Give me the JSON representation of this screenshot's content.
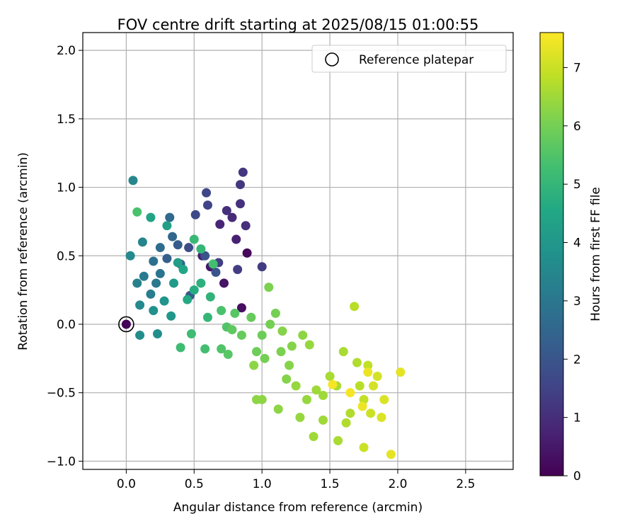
{
  "chart_data": {
    "type": "scatter",
    "title": "FOV centre drift starting at 2025/08/15 01:00:55",
    "xlabel": "Angular distance from reference (arcmin)",
    "ylabel": "Rotation from reference (arcmin)",
    "xlim": [
      -0.32,
      2.85
    ],
    "ylim": [
      -1.06,
      2.13
    ],
    "xticks": [
      0.0,
      0.5,
      1.0,
      1.5,
      2.0,
      2.5
    ],
    "xtick_labels": [
      "0.0",
      "0.5",
      "1.0",
      "1.5",
      "2.0",
      "2.5"
    ],
    "yticks": [
      -1.0,
      -0.5,
      0.0,
      0.5,
      1.0,
      1.5,
      2.0
    ],
    "ytick_labels": [
      "−1.0",
      "−0.5",
      "0.0",
      "0.5",
      "1.0",
      "1.5",
      "2.0"
    ],
    "grid": true,
    "legend": {
      "placement": "upper-right",
      "entries": [
        "Reference platepar"
      ]
    },
    "reference": {
      "x": 0.0,
      "y": 0.0
    },
    "colorbar": {
      "label": "Hours from first FF file",
      "range": [
        0,
        7.6
      ],
      "ticks": [
        0,
        1,
        2,
        3,
        4,
        5,
        6,
        7
      ],
      "tick_labels": [
        "0",
        "1",
        "2",
        "3",
        "4",
        "5",
        "6",
        "7"
      ],
      "colormap": "viridis"
    },
    "points": [
      [
        0.0,
        0.0,
        0.05
      ],
      [
        0.89,
        0.52,
        0.15
      ],
      [
        0.85,
        0.12,
        0.3
      ],
      [
        0.72,
        0.3,
        0.4
      ],
      [
        0.62,
        0.42,
        0.5
      ],
      [
        0.56,
        0.5,
        0.6
      ],
      [
        0.81,
        0.62,
        0.7
      ],
      [
        0.69,
        0.73,
        0.8
      ],
      [
        0.78,
        0.78,
        0.9
      ],
      [
        0.88,
        0.72,
        1.0
      ],
      [
        0.74,
        0.83,
        1.05
      ],
      [
        0.84,
        0.88,
        1.1
      ],
      [
        0.86,
        1.11,
        1.2
      ],
      [
        0.84,
        1.02,
        1.2
      ],
      [
        1.0,
        0.42,
        1.3
      ],
      [
        0.82,
        0.4,
        1.35
      ],
      [
        0.68,
        0.45,
        1.4
      ],
      [
        0.6,
        0.87,
        1.5
      ],
      [
        0.59,
        0.96,
        1.6
      ],
      [
        0.51,
        0.8,
        1.7
      ],
      [
        0.46,
        0.56,
        1.8
      ],
      [
        0.58,
        0.5,
        1.9
      ],
      [
        0.66,
        0.38,
        2.0
      ],
      [
        0.47,
        0.21,
        2.1
      ],
      [
        0.38,
        0.58,
        2.2
      ],
      [
        0.3,
        0.48,
        2.3
      ],
      [
        0.4,
        0.44,
        2.4
      ],
      [
        0.34,
        0.64,
        2.5
      ],
      [
        0.32,
        0.78,
        2.6
      ],
      [
        0.25,
        0.56,
        2.7
      ],
      [
        0.2,
        0.46,
        2.8
      ],
      [
        0.25,
        0.37,
        2.9
      ],
      [
        0.22,
        0.3,
        3.0
      ],
      [
        0.13,
        0.35,
        3.1
      ],
      [
        0.18,
        0.22,
        3.2
      ],
      [
        0.08,
        0.3,
        3.3
      ],
      [
        0.12,
        0.6,
        3.4
      ],
      [
        0.05,
        1.05,
        3.5
      ],
      [
        0.03,
        0.5,
        3.6
      ],
      [
        0.1,
        0.14,
        3.6
      ],
      [
        0.1,
        -0.08,
        3.7
      ],
      [
        0.23,
        -0.07,
        3.7
      ],
      [
        0.2,
        0.1,
        3.8
      ],
      [
        0.28,
        0.17,
        3.9
      ],
      [
        0.33,
        0.06,
        4.0
      ],
      [
        0.35,
        0.3,
        4.1
      ],
      [
        0.38,
        0.45,
        4.2
      ],
      [
        0.3,
        0.72,
        4.3
      ],
      [
        0.18,
        0.78,
        4.4
      ],
      [
        0.42,
        0.4,
        4.5
      ],
      [
        0.45,
        0.18,
        4.6
      ],
      [
        0.5,
        0.25,
        4.7
      ],
      [
        0.55,
        0.3,
        4.8
      ],
      [
        0.62,
        0.2,
        4.9
      ],
      [
        0.6,
        0.05,
        5.0
      ],
      [
        0.55,
        0.55,
        5.0
      ],
      [
        0.5,
        0.62,
        5.1
      ],
      [
        0.48,
        -0.07,
        5.2
      ],
      [
        0.4,
        -0.17,
        5.2
      ],
      [
        0.58,
        -0.18,
        5.3
      ],
      [
        0.64,
        0.44,
        5.3
      ],
      [
        0.7,
        0.1,
        5.4
      ],
      [
        0.08,
        0.82,
        5.4
      ],
      [
        0.74,
        -0.02,
        5.5
      ],
      [
        0.7,
        -0.18,
        5.5
      ],
      [
        0.75,
        -0.22,
        5.6
      ],
      [
        0.8,
        0.08,
        5.6
      ],
      [
        0.78,
        -0.04,
        5.7
      ],
      [
        0.85,
        -0.08,
        5.8
      ],
      [
        0.92,
        0.05,
        5.8
      ],
      [
        0.96,
        -0.2,
        5.9
      ],
      [
        1.0,
        -0.08,
        5.9
      ],
      [
        1.02,
        -0.25,
        6.0
      ],
      [
        1.06,
        0.0,
        6.0
      ],
      [
        1.1,
        0.08,
        6.0
      ],
      [
        1.05,
        0.27,
        6.1
      ],
      [
        1.14,
        -0.2,
        6.1
      ],
      [
        1.15,
        -0.05,
        6.2
      ],
      [
        1.2,
        -0.3,
        6.2
      ],
      [
        1.22,
        -0.16,
        6.2
      ],
      [
        1.18,
        -0.4,
        6.2
      ],
      [
        1.12,
        -0.62,
        6.3
      ],
      [
        1.0,
        -0.55,
        6.3
      ],
      [
        0.94,
        -0.3,
        6.3
      ],
      [
        0.96,
        -0.55,
        6.3
      ],
      [
        1.3,
        -0.08,
        6.3
      ],
      [
        1.35,
        -0.15,
        6.4
      ],
      [
        1.25,
        -0.45,
        6.4
      ],
      [
        1.33,
        -0.55,
        6.4
      ],
      [
        1.28,
        -0.68,
        6.4
      ],
      [
        1.4,
        -0.48,
        6.5
      ],
      [
        1.45,
        -0.52,
        6.5
      ],
      [
        1.38,
        -0.82,
        6.5
      ],
      [
        1.45,
        -0.7,
        6.5
      ],
      [
        1.5,
        -0.38,
        6.6
      ],
      [
        1.55,
        -0.45,
        6.6
      ],
      [
        1.6,
        -0.2,
        6.6
      ],
      [
        1.56,
        -0.85,
        6.6
      ],
      [
        1.65,
        -0.65,
        6.7
      ],
      [
        1.62,
        -0.72,
        6.7
      ],
      [
        1.7,
        -0.28,
        6.7
      ],
      [
        1.68,
        0.13,
        6.8
      ],
      [
        1.72,
        -0.45,
        6.8
      ],
      [
        1.75,
        -0.55,
        6.9
      ],
      [
        1.78,
        -0.3,
        6.9
      ],
      [
        1.8,
        -0.65,
        7.0
      ],
      [
        1.75,
        -0.9,
        7.0
      ],
      [
        1.82,
        -0.45,
        7.1
      ],
      [
        1.85,
        -0.38,
        7.1
      ],
      [
        1.9,
        -0.55,
        7.2
      ],
      [
        1.88,
        -0.68,
        7.2
      ],
      [
        1.95,
        -0.95,
        7.3
      ],
      [
        2.02,
        -0.35,
        7.3
      ],
      [
        1.78,
        -0.35,
        7.4
      ],
      [
        1.74,
        -0.6,
        7.4
      ],
      [
        1.65,
        -0.5,
        7.5
      ],
      [
        1.52,
        -0.44,
        7.5
      ]
    ]
  }
}
